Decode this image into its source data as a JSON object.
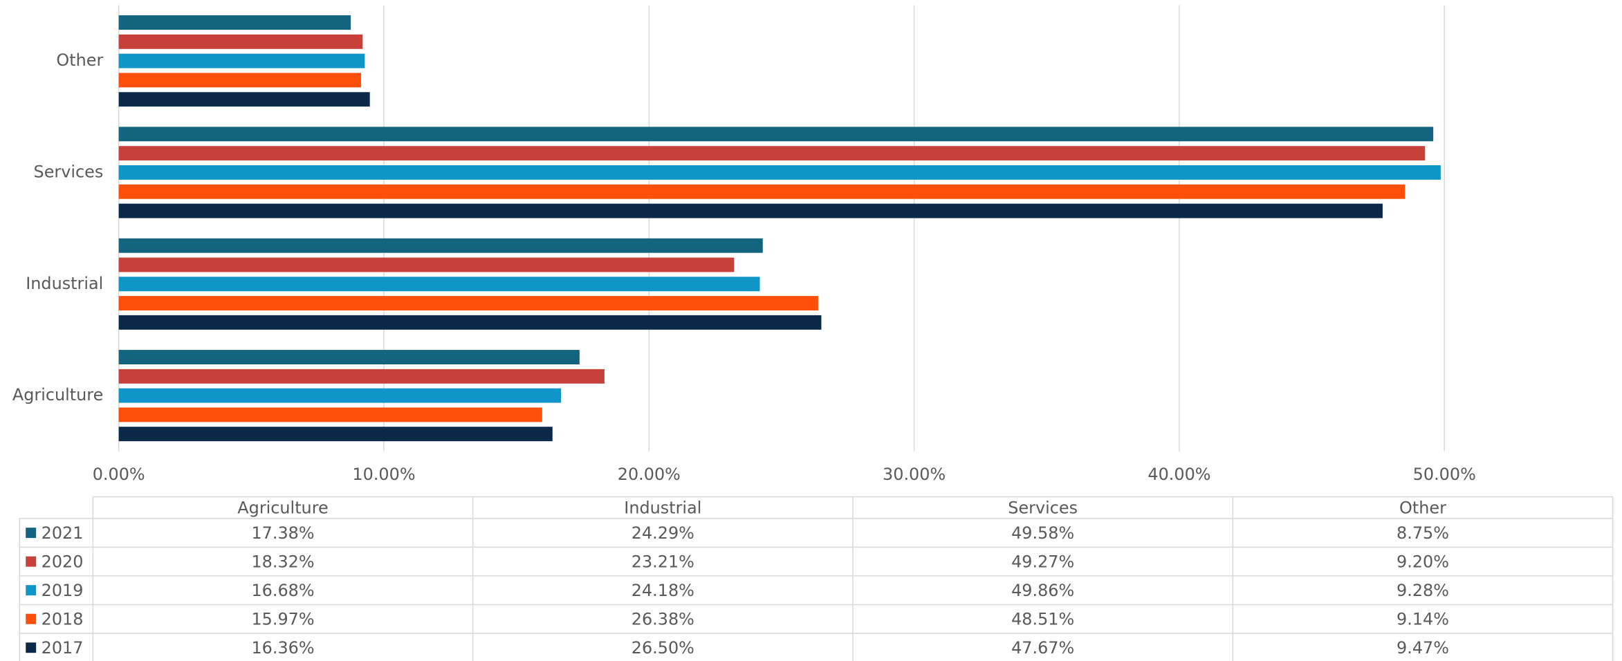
{
  "chart_data": {
    "type": "bar",
    "orientation": "horizontal",
    "categories": [
      "Agriculture",
      "Industrial",
      "Services",
      "Other"
    ],
    "series": [
      {
        "name": "2021",
        "color": "#13647e",
        "values": [
          17.38,
          24.29,
          49.58,
          8.75
        ],
        "value_labels": [
          "17.38%",
          "24.29%",
          "49.58%",
          "8.75%"
        ]
      },
      {
        "name": "2020",
        "color": "#c8403a",
        "values": [
          18.32,
          23.21,
          49.27,
          9.2
        ],
        "value_labels": [
          "18.32%",
          "23.21%",
          "49.27%",
          "9.20%"
        ]
      },
      {
        "name": "2019",
        "color": "#0f95c8",
        "values": [
          16.68,
          24.18,
          49.86,
          9.28
        ],
        "value_labels": [
          "16.68%",
          "24.18%",
          "49.86%",
          "9.28%"
        ]
      },
      {
        "name": "2018",
        "color": "#fb4f0a",
        "values": [
          15.97,
          26.38,
          48.51,
          9.14
        ],
        "value_labels": [
          "15.97%",
          "26.38%",
          "48.51%",
          "9.14%"
        ]
      },
      {
        "name": "2017",
        "color": "#0b2a4a",
        "values": [
          16.36,
          26.5,
          47.67,
          9.47
        ],
        "value_labels": [
          "16.36%",
          "26.50%",
          "47.67%",
          "9.47%"
        ]
      }
    ],
    "xlim": [
      0,
      56.35
    ],
    "xticks": [
      {
        "value": 0,
        "label": "0.00%"
      },
      {
        "value": 10,
        "label": "10.00%"
      },
      {
        "value": 20,
        "label": "20.00%"
      },
      {
        "value": 30,
        "label": "30.00%"
      },
      {
        "value": 40,
        "label": "40.00%"
      },
      {
        "value": 50,
        "label": "50.00%"
      }
    ],
    "grid": true,
    "data_table": true
  }
}
